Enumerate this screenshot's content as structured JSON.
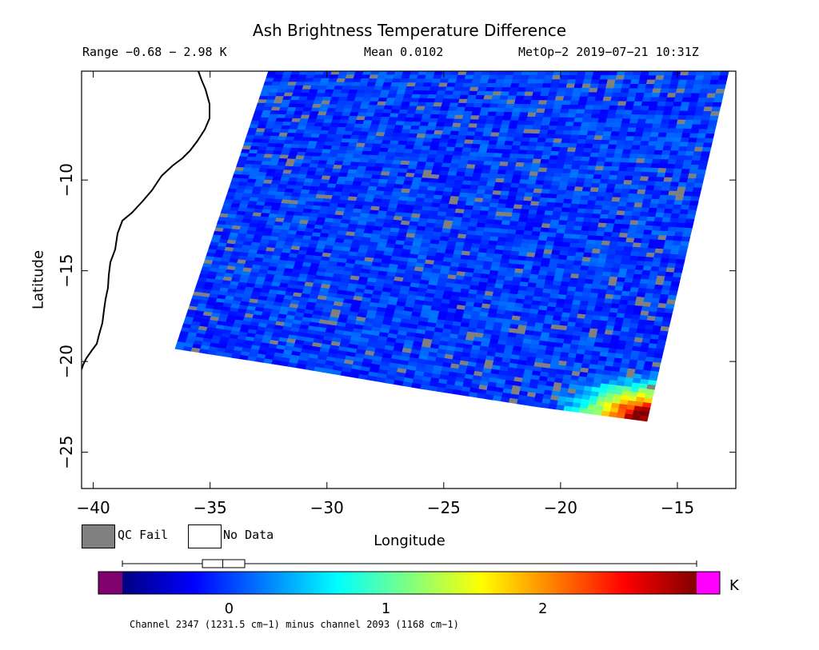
{
  "chart_data": {
    "type": "heatmap",
    "title": "Ash Brightness Temperature Difference",
    "subtitle_left": "Range −0.68 − 2.98 K",
    "subtitle_center": "Mean 0.0102",
    "subtitle_right": "MetOp−2 2019−07−21 10:31Z",
    "xlabel": "Longitude",
    "ylabel": "Latitude",
    "xlim": [
      -40.5,
      -12.5
    ],
    "ylim": [
      -27,
      -4
    ],
    "xticks": [
      -40,
      -35,
      -30,
      -25,
      -20,
      -15
    ],
    "xtick_labels": [
      "−40",
      "−35",
      "−30",
      "−25",
      "−20",
      "−15"
    ],
    "yticks": [
      -10,
      -15,
      -20,
      -25
    ],
    "ytick_labels": [
      "−10",
      "−15",
      "−20",
      "−25"
    ],
    "swath_corners": [
      [
        -36.5,
        -19.2
      ],
      [
        -32.5,
        -4.0
      ],
      [
        -12.8,
        -4.0
      ],
      [
        -16.0,
        -20.2
      ],
      [
        -16.3,
        -23.3
      ]
    ],
    "swath_bottom_edge": [
      [
        -36.5,
        -19.3
      ],
      [
        -31.5,
        -20.3
      ],
      [
        -26.0,
        -21.5
      ],
      [
        -21.0,
        -22.5
      ],
      [
        -16.3,
        -23.3
      ]
    ],
    "dominant_value": 0.0,
    "hotspot": {
      "lon": -16.5,
      "lat": -23.0,
      "value": 2.9
    },
    "colorbar": {
      "ticks": [
        0,
        1,
        2
      ],
      "tick_labels": [
        "0",
        "1",
        "2"
      ],
      "vmin": -0.68,
      "vmax": 2.98,
      "unit": "K",
      "under_color": "#80006e",
      "over_color": "#ff00ff",
      "colors": [
        "#000080",
        "#0000ff",
        "#0080ff",
        "#00ffff",
        "#80ff80",
        "#ffff00",
        "#ff8000",
        "#ff0000",
        "#800000"
      ]
    },
    "legend": [
      {
        "label": "QC Fail",
        "color": "#808080"
      },
      {
        "label": "No Data",
        "color": "#ffffff"
      }
    ],
    "boxplot": {
      "min": -0.68,
      "q1": -0.17,
      "median": -0.04,
      "q3": 0.1,
      "max": 2.98
    },
    "footnote": "Channel 2347 (1231.5 cm−1) minus channel 2093 (1168 cm−1)"
  }
}
